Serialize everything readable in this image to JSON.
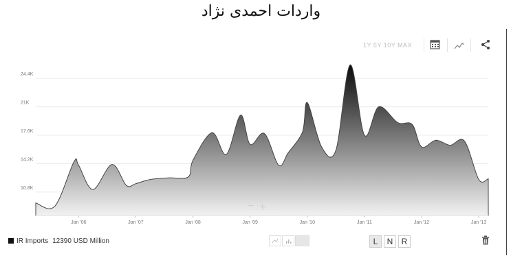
{
  "title": "واردات احمدی نژاد",
  "toolbar": {
    "ranges": "1Y 5Y 10Y MAX",
    "icons": [
      "calendar-icon",
      "line-chart-icon",
      "share-icon"
    ]
  },
  "legend": {
    "series_name": "IR Imports",
    "value_text": "12390 USD Million",
    "swatch_color": "#111111"
  },
  "chart_controls": {
    "zoom_out": "−",
    "zoom_in": "+"
  },
  "chart_types": [
    "line-type-icon",
    "bar-type-icon",
    "area-type-icon"
  ],
  "scale_buttons": [
    "L",
    "N",
    "R"
  ],
  "chart_data": {
    "type": "area",
    "title": "",
    "xlabel": "",
    "ylabel": "",
    "series": [
      {
        "name": "IR Imports",
        "x": [
          "2005-04",
          "2005-08",
          "2005-12",
          "2006-01",
          "2006-04",
          "2006-08",
          "2006-11",
          "2007-01",
          "2007-04",
          "2007-08",
          "2007-12",
          "2008-01",
          "2008-05",
          "2008-08",
          "2008-11",
          "2009-01",
          "2009-04",
          "2009-07",
          "2009-09",
          "2009-12",
          "2010-01",
          "2010-04",
          "2010-07",
          "2010-10",
          "2011-01",
          "2011-04",
          "2011-08",
          "2011-11",
          "2012-01",
          "2012-04",
          "2012-07",
          "2012-10",
          "2013-01",
          "2013-03"
        ],
        "values": [
          9500,
          9100,
          14400,
          14000,
          11100,
          14100,
          11600,
          11800,
          12300,
          12500,
          12600,
          14600,
          17900,
          15300,
          20000,
          16500,
          17800,
          14000,
          15500,
          18000,
          21500,
          16200,
          15800,
          26000,
          17600,
          21000,
          19100,
          18900,
          16200,
          17000,
          16400,
          16900,
          12300,
          12390
        ]
      }
    ],
    "x_ticks": [
      "Jan '06",
      "Jan '07",
      "Jan '08",
      "Jan '09",
      "Jan '10",
      "Jan '11",
      "Jan '12",
      "Jan '13"
    ],
    "y_ticks": [
      "10.8K",
      "14.2K",
      "17.6K",
      "21K",
      "24.4K"
    ],
    "y_tick_values": [
      10800,
      14200,
      17600,
      21000,
      24400
    ],
    "ylim": [
      8000,
      27200
    ],
    "x_range": [
      "2005-04",
      "2013-03"
    ],
    "grid": true,
    "gradient_colors": [
      "#0a0a0a",
      "#f2f2f2"
    ]
  }
}
